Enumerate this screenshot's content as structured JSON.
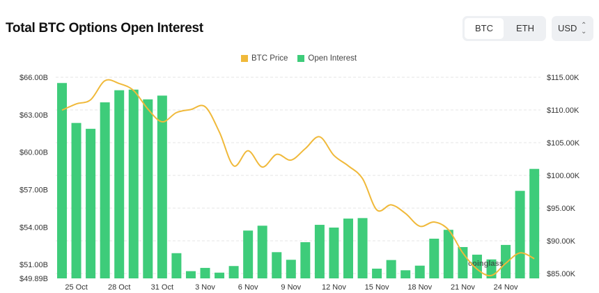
{
  "header": {
    "title": "Total BTC Options Open Interest"
  },
  "controls": {
    "asset_options": [
      "BTC",
      "ETH"
    ],
    "asset_selected": "BTC",
    "currency": "USD"
  },
  "watermark": "coinglass",
  "colors": {
    "price": "#f0b93a",
    "open_interest": "#3ecc7a",
    "grid": "#e6e6e6"
  },
  "chart_data": {
    "type": "bar+line",
    "legend": [
      "BTC Price",
      "Open Interest"
    ],
    "legend_position": "top",
    "grid": true,
    "categories": [
      "24 Oct",
      "25 Oct",
      "26 Oct",
      "27 Oct",
      "28 Oct",
      "29 Oct",
      "30 Oct",
      "31 Oct",
      "1 Nov",
      "2 Nov",
      "3 Nov",
      "4 Nov",
      "5 Nov",
      "6 Nov",
      "7 Nov",
      "8 Nov",
      "9 Nov",
      "10 Nov",
      "11 Nov",
      "12 Nov",
      "13 Nov",
      "14 Nov",
      "15 Nov",
      "16 Nov",
      "17 Nov",
      "18 Nov",
      "19 Nov",
      "20 Nov",
      "21 Nov",
      "22 Nov",
      "23 Nov",
      "24 Nov",
      "25 Nov",
      "26 Nov"
    ],
    "x_tick_labels": [
      "25 Oct",
      "28 Oct",
      "31 Oct",
      "3 Nov",
      "6 Nov",
      "9 Nov",
      "12 Nov",
      "15 Nov",
      "18 Nov",
      "21 Nov",
      "24 Nov"
    ],
    "left_axis": {
      "ticks": [
        "$66.00B",
        "$63.00B",
        "$60.00B",
        "$57.00B",
        "$54.00B",
        "$51.00B",
        "$49.89B"
      ],
      "tick_values": [
        66,
        63,
        60,
        57,
        54,
        51,
        49.89
      ],
      "range": [
        49.89,
        66
      ],
      "unit": "B USD"
    },
    "right_axis": {
      "ticks": [
        "$115.00K",
        "$110.00K",
        "$105.00K",
        "$100.00K",
        "$95.00K",
        "$90.00K",
        "$85.00K"
      ],
      "tick_values": [
        115,
        110,
        105,
        100,
        95,
        90,
        85
      ],
      "range": [
        84.26,
        115
      ],
      "unit": "K USD"
    },
    "series": [
      {
        "name": "Open Interest",
        "type": "bar",
        "axis": "left",
        "values": [
          65.54,
          62.34,
          61.87,
          63.99,
          64.96,
          65.01,
          64.23,
          64.53,
          51.91,
          50.47,
          50.73,
          50.35,
          50.88,
          53.72,
          54.11,
          51.99,
          51.38,
          52.79,
          54.18,
          53.96,
          54.68,
          54.72,
          50.67,
          51.36,
          50.54,
          50.91,
          53.07,
          53.78,
          52.4,
          51.79,
          51.41,
          52.57,
          56.9,
          58.66
        ]
      },
      {
        "name": "BTC Price",
        "type": "line",
        "axis": "right",
        "values": [
          109.97,
          110.93,
          111.56,
          114.47,
          114.04,
          112.98,
          110.14,
          108.19,
          109.6,
          110.07,
          110.5,
          106.6,
          101.46,
          103.76,
          101.28,
          103.22,
          102.34,
          104.1,
          105.9,
          103.05,
          101.46,
          99.5,
          94.71,
          95.5,
          94.18,
          92.23,
          92.87,
          91.7,
          88.16,
          85.67,
          84.7,
          86.56,
          88.16,
          87.27
        ]
      }
    ]
  }
}
